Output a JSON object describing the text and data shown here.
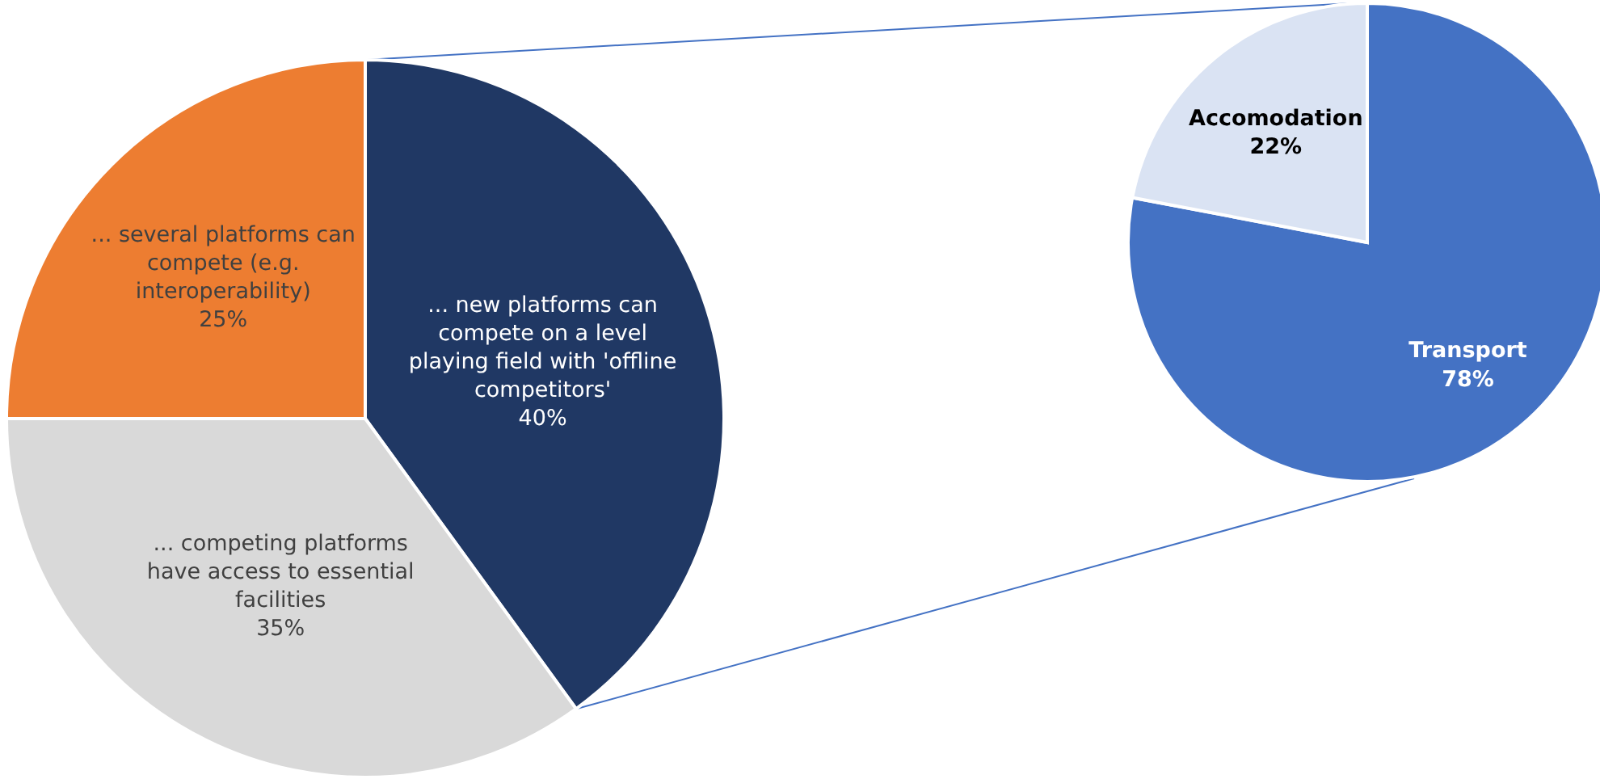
{
  "chart_data": [
    {
      "type": "pie",
      "categories": [
        "... new platforms can compete on a level playing field with 'offline competitors'",
        "... competing platforms have access to essential facilities",
        "... several platforms can compete (e.g. interoperability)"
      ],
      "values": [
        40,
        35,
        25
      ],
      "colors": [
        "#203864",
        "#d9d9d9",
        "#ed7d31"
      ],
      "data_labels": true,
      "value_labels": [
        "40%",
        "35%",
        "25%"
      ]
    },
    {
      "type": "pie",
      "categories": [
        "Transport",
        "Accomodation"
      ],
      "values": [
        78,
        22
      ],
      "colors": [
        "#4472c4",
        "#dae3f3"
      ],
      "data_labels": true,
      "value_labels": [
        "78%",
        "22%"
      ]
    }
  ]
}
